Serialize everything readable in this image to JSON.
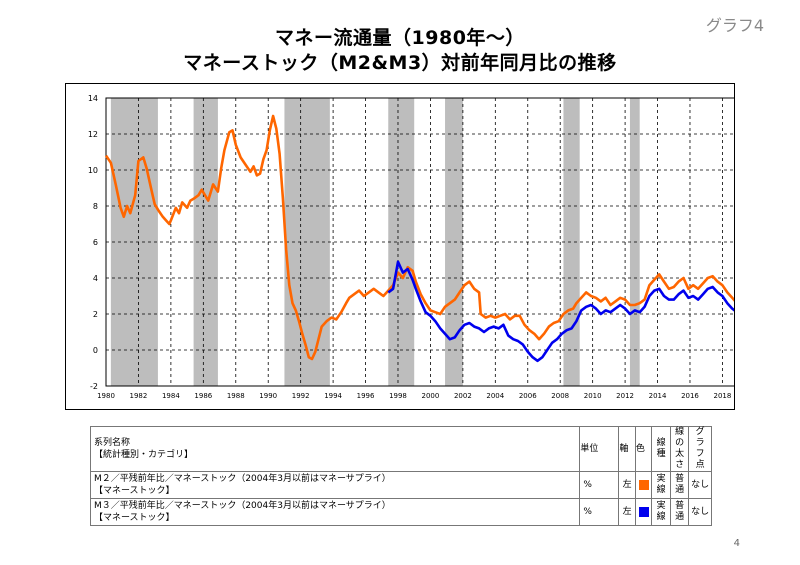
{
  "header": {
    "title_line1": "マネー流通量（1980年～）",
    "title_line2": "マネーストック（M2&M3）対前年同月比の推移",
    "badge": "グラフ4"
  },
  "legend_table": {
    "headers": {
      "name_line1": "系列名称",
      "name_line2": "【統計種別・カテゴリ】",
      "unit": "単位",
      "axis": "軸",
      "color": "色",
      "line_type": "線種",
      "line_width": "線の太さ",
      "points": "グラフ点"
    },
    "rows": [
      {
        "name_line1": "M２／平残前年比／マネーストック（2004年3月以前はマネーサプライ）",
        "name_line2": "【マネーストック】",
        "unit": "%",
        "axis": "左",
        "color": "#ff6600",
        "line_type": "実線",
        "line_width": "普通",
        "points": "なし"
      },
      {
        "name_line1": "M３／平残前年比／マネーストック（2004年3月以前はマネーサプライ）",
        "name_line2": "【マネーストック】",
        "unit": "%",
        "axis": "左",
        "color": "#0000ee",
        "line_type": "実線",
        "line_width": "普通",
        "points": "なし"
      }
    ]
  },
  "page_number": "4",
  "chart_data": {
    "type": "line",
    "title": "",
    "xlabel": "",
    "ylabel": "",
    "xlim": [
      1980.0,
      2019.7
    ],
    "ylim": [
      -2,
      14
    ],
    "yticks": [
      -2,
      0,
      2,
      4,
      6,
      8,
      10,
      12,
      14
    ],
    "xticks": [
      1980,
      1982,
      1984,
      1986,
      1988,
      1990,
      1992,
      1994,
      1996,
      1998,
      2000,
      2002,
      2004,
      2006,
      2008,
      2010,
      2012,
      2014,
      2016,
      2018
    ],
    "grid": true,
    "recession_shading": [
      [
        1980.3,
        1983.2
      ],
      [
        1985.4,
        1986.9
      ],
      [
        1991.0,
        1993.8
      ],
      [
        1997.4,
        1999.0
      ],
      [
        2000.9,
        2002.0
      ],
      [
        2008.2,
        2009.2
      ],
      [
        2012.3,
        2012.9
      ]
    ],
    "recession_color": "#bdbdbd",
    "series": [
      {
        "color": "#ff6600",
        "points": [
          [
            1980.0,
            10.8
          ],
          [
            1980.3,
            10.4
          ],
          [
            1980.6,
            9.2
          ],
          [
            1980.9,
            7.9
          ],
          [
            1981.1,
            7.4
          ],
          [
            1981.3,
            8.0
          ],
          [
            1981.5,
            7.6
          ],
          [
            1981.8,
            8.6
          ],
          [
            1982.0,
            10.5
          ],
          [
            1982.3,
            10.7
          ],
          [
            1982.5,
            10.1
          ],
          [
            1982.8,
            8.9
          ],
          [
            1983.0,
            8.1
          ],
          [
            1983.2,
            7.8
          ],
          [
            1983.5,
            7.4
          ],
          [
            1983.7,
            7.2
          ],
          [
            1983.9,
            7.0
          ],
          [
            1984.0,
            7.2
          ],
          [
            1984.3,
            7.9
          ],
          [
            1984.5,
            7.6
          ],
          [
            1984.7,
            8.2
          ],
          [
            1985.0,
            7.9
          ],
          [
            1985.2,
            8.3
          ],
          [
            1985.4,
            8.4
          ],
          [
            1985.7,
            8.6
          ],
          [
            1985.9,
            8.9
          ],
          [
            1986.1,
            8.6
          ],
          [
            1986.3,
            8.3
          ],
          [
            1986.6,
            9.2
          ],
          [
            1986.9,
            8.8
          ],
          [
            1987.1,
            10.1
          ],
          [
            1987.3,
            11.1
          ],
          [
            1987.6,
            12.1
          ],
          [
            1987.8,
            12.2
          ],
          [
            1988.0,
            11.4
          ],
          [
            1988.3,
            10.7
          ],
          [
            1988.6,
            10.3
          ],
          [
            1988.9,
            9.9
          ],
          [
            1989.1,
            10.2
          ],
          [
            1989.3,
            9.7
          ],
          [
            1989.5,
            9.8
          ],
          [
            1989.7,
            10.6
          ],
          [
            1989.9,
            11.1
          ],
          [
            1990.1,
            12.2
          ],
          [
            1990.3,
            13.0
          ],
          [
            1990.5,
            12.3
          ],
          [
            1990.7,
            10.9
          ],
          [
            1990.9,
            8.5
          ],
          [
            1991.1,
            5.6
          ],
          [
            1991.3,
            3.6
          ],
          [
            1991.5,
            2.6
          ],
          [
            1991.7,
            2.2
          ],
          [
            1991.9,
            1.6
          ],
          [
            1992.1,
            0.9
          ],
          [
            1992.3,
            0.3
          ],
          [
            1992.5,
            -0.4
          ],
          [
            1992.7,
            -0.5
          ],
          [
            1992.9,
            -0.1
          ],
          [
            1993.1,
            0.6
          ],
          [
            1993.3,
            1.3
          ],
          [
            1993.6,
            1.6
          ],
          [
            1993.9,
            1.8
          ],
          [
            1994.2,
            1.7
          ],
          [
            1994.5,
            2.1
          ],
          [
            1994.8,
            2.6
          ],
          [
            1995.0,
            2.9
          ],
          [
            1995.3,
            3.1
          ],
          [
            1995.6,
            3.3
          ],
          [
            1995.9,
            3.0
          ],
          [
            1996.2,
            3.2
          ],
          [
            1996.5,
            3.4
          ],
          [
            1996.8,
            3.2
          ],
          [
            1997.1,
            3.0
          ],
          [
            1997.4,
            3.3
          ],
          [
            1997.7,
            3.6
          ],
          [
            1998.0,
            4.3
          ],
          [
            1998.3,
            4.0
          ],
          [
            1998.6,
            4.6
          ],
          [
            1998.9,
            4.4
          ],
          [
            1999.1,
            3.8
          ],
          [
            1999.4,
            3.1
          ],
          [
            1999.7,
            2.6
          ],
          [
            2000.0,
            2.2
          ],
          [
            2000.3,
            2.1
          ],
          [
            2000.6,
            2.0
          ],
          [
            2000.9,
            2.4
          ],
          [
            2001.2,
            2.6
          ],
          [
            2001.5,
            2.8
          ],
          [
            2001.8,
            3.2
          ],
          [
            2002.1,
            3.6
          ],
          [
            2002.4,
            3.8
          ],
          [
            2002.7,
            3.4
          ],
          [
            2003.0,
            3.2
          ],
          [
            2003.1,
            2.0
          ],
          [
            2003.4,
            1.8
          ],
          [
            2003.7,
            1.9
          ],
          [
            2004.0,
            1.8
          ],
          [
            2004.3,
            1.9
          ],
          [
            2004.6,
            2.0
          ],
          [
            2004.9,
            1.7
          ],
          [
            2005.2,
            1.9
          ],
          [
            2005.5,
            1.9
          ],
          [
            2005.8,
            1.4
          ],
          [
            2006.1,
            1.1
          ],
          [
            2006.4,
            0.9
          ],
          [
            2006.7,
            0.6
          ],
          [
            2007.0,
            0.9
          ],
          [
            2007.3,
            1.3
          ],
          [
            2007.6,
            1.5
          ],
          [
            2007.9,
            1.6
          ],
          [
            2008.2,
            2.0
          ],
          [
            2008.5,
            2.2
          ],
          [
            2008.8,
            2.3
          ],
          [
            2009.0,
            2.6
          ],
          [
            2009.3,
            2.9
          ],
          [
            2009.6,
            3.2
          ],
          [
            2009.9,
            3.0
          ],
          [
            2010.2,
            2.9
          ],
          [
            2010.5,
            2.7
          ],
          [
            2010.8,
            2.9
          ],
          [
            2011.1,
            2.5
          ],
          [
            2011.4,
            2.7
          ],
          [
            2011.7,
            2.9
          ],
          [
            2012.0,
            2.8
          ],
          [
            2012.3,
            2.5
          ],
          [
            2012.6,
            2.5
          ],
          [
            2012.9,
            2.6
          ],
          [
            2013.2,
            2.8
          ],
          [
            2013.5,
            3.6
          ],
          [
            2013.8,
            3.9
          ],
          [
            2014.1,
            4.2
          ],
          [
            2014.4,
            3.8
          ],
          [
            2014.7,
            3.4
          ],
          [
            2015.0,
            3.5
          ],
          [
            2015.3,
            3.8
          ],
          [
            2015.6,
            4.0
          ],
          [
            2015.9,
            3.4
          ],
          [
            2016.2,
            3.6
          ],
          [
            2016.5,
            3.4
          ],
          [
            2016.8,
            3.7
          ],
          [
            2017.1,
            4.0
          ],
          [
            2017.4,
            4.1
          ],
          [
            2017.7,
            3.8
          ],
          [
            2018.0,
            3.6
          ],
          [
            2018.3,
            3.2
          ],
          [
            2018.6,
            2.9
          ],
          [
            2018.9,
            2.6
          ],
          [
            2019.2,
            2.5
          ]
        ]
      },
      {
        "color": "#0000ee",
        "points": [
          [
            1997.4,
            3.2
          ],
          [
            1997.7,
            3.4
          ],
          [
            1998.0,
            4.9
          ],
          [
            1998.3,
            4.3
          ],
          [
            1998.6,
            4.5
          ],
          [
            1998.9,
            3.9
          ],
          [
            1999.1,
            3.4
          ],
          [
            1999.4,
            2.7
          ],
          [
            1999.7,
            2.1
          ],
          [
            2000.0,
            1.9
          ],
          [
            2000.3,
            1.6
          ],
          [
            2000.6,
            1.2
          ],
          [
            2000.9,
            0.9
          ],
          [
            2001.2,
            0.6
          ],
          [
            2001.5,
            0.7
          ],
          [
            2001.8,
            1.1
          ],
          [
            2002.1,
            1.4
          ],
          [
            2002.4,
            1.5
          ],
          [
            2002.7,
            1.3
          ],
          [
            2003.0,
            1.2
          ],
          [
            2003.3,
            1.0
          ],
          [
            2003.6,
            1.2
          ],
          [
            2003.9,
            1.3
          ],
          [
            2004.2,
            1.2
          ],
          [
            2004.5,
            1.4
          ],
          [
            2004.8,
            0.8
          ],
          [
            2005.1,
            0.6
          ],
          [
            2005.4,
            0.5
          ],
          [
            2005.7,
            0.3
          ],
          [
            2006.0,
            -0.1
          ],
          [
            2006.3,
            -0.4
          ],
          [
            2006.6,
            -0.6
          ],
          [
            2006.9,
            -0.4
          ],
          [
            2007.2,
            0.0
          ],
          [
            2007.5,
            0.4
          ],
          [
            2007.8,
            0.6
          ],
          [
            2008.1,
            0.9
          ],
          [
            2008.4,
            1.1
          ],
          [
            2008.7,
            1.2
          ],
          [
            2009.0,
            1.6
          ],
          [
            2009.3,
            2.2
          ],
          [
            2009.6,
            2.4
          ],
          [
            2009.9,
            2.5
          ],
          [
            2010.2,
            2.3
          ],
          [
            2010.5,
            2.0
          ],
          [
            2010.8,
            2.2
          ],
          [
            2011.1,
            2.1
          ],
          [
            2011.4,
            2.3
          ],
          [
            2011.7,
            2.5
          ],
          [
            2012.0,
            2.3
          ],
          [
            2012.3,
            2.0
          ],
          [
            2012.6,
            2.2
          ],
          [
            2012.9,
            2.1
          ],
          [
            2013.2,
            2.4
          ],
          [
            2013.5,
            3.0
          ],
          [
            2013.8,
            3.3
          ],
          [
            2014.1,
            3.4
          ],
          [
            2014.4,
            3.0
          ],
          [
            2014.7,
            2.8
          ],
          [
            2015.0,
            2.8
          ],
          [
            2015.3,
            3.1
          ],
          [
            2015.6,
            3.3
          ],
          [
            2015.9,
            2.9
          ],
          [
            2016.2,
            3.0
          ],
          [
            2016.5,
            2.8
          ],
          [
            2016.8,
            3.1
          ],
          [
            2017.1,
            3.4
          ],
          [
            2017.4,
            3.5
          ],
          [
            2017.7,
            3.2
          ],
          [
            2018.0,
            3.0
          ],
          [
            2018.3,
            2.6
          ],
          [
            2018.6,
            2.3
          ],
          [
            2018.9,
            2.1
          ],
          [
            2019.2,
            2.0
          ]
        ]
      }
    ]
  }
}
